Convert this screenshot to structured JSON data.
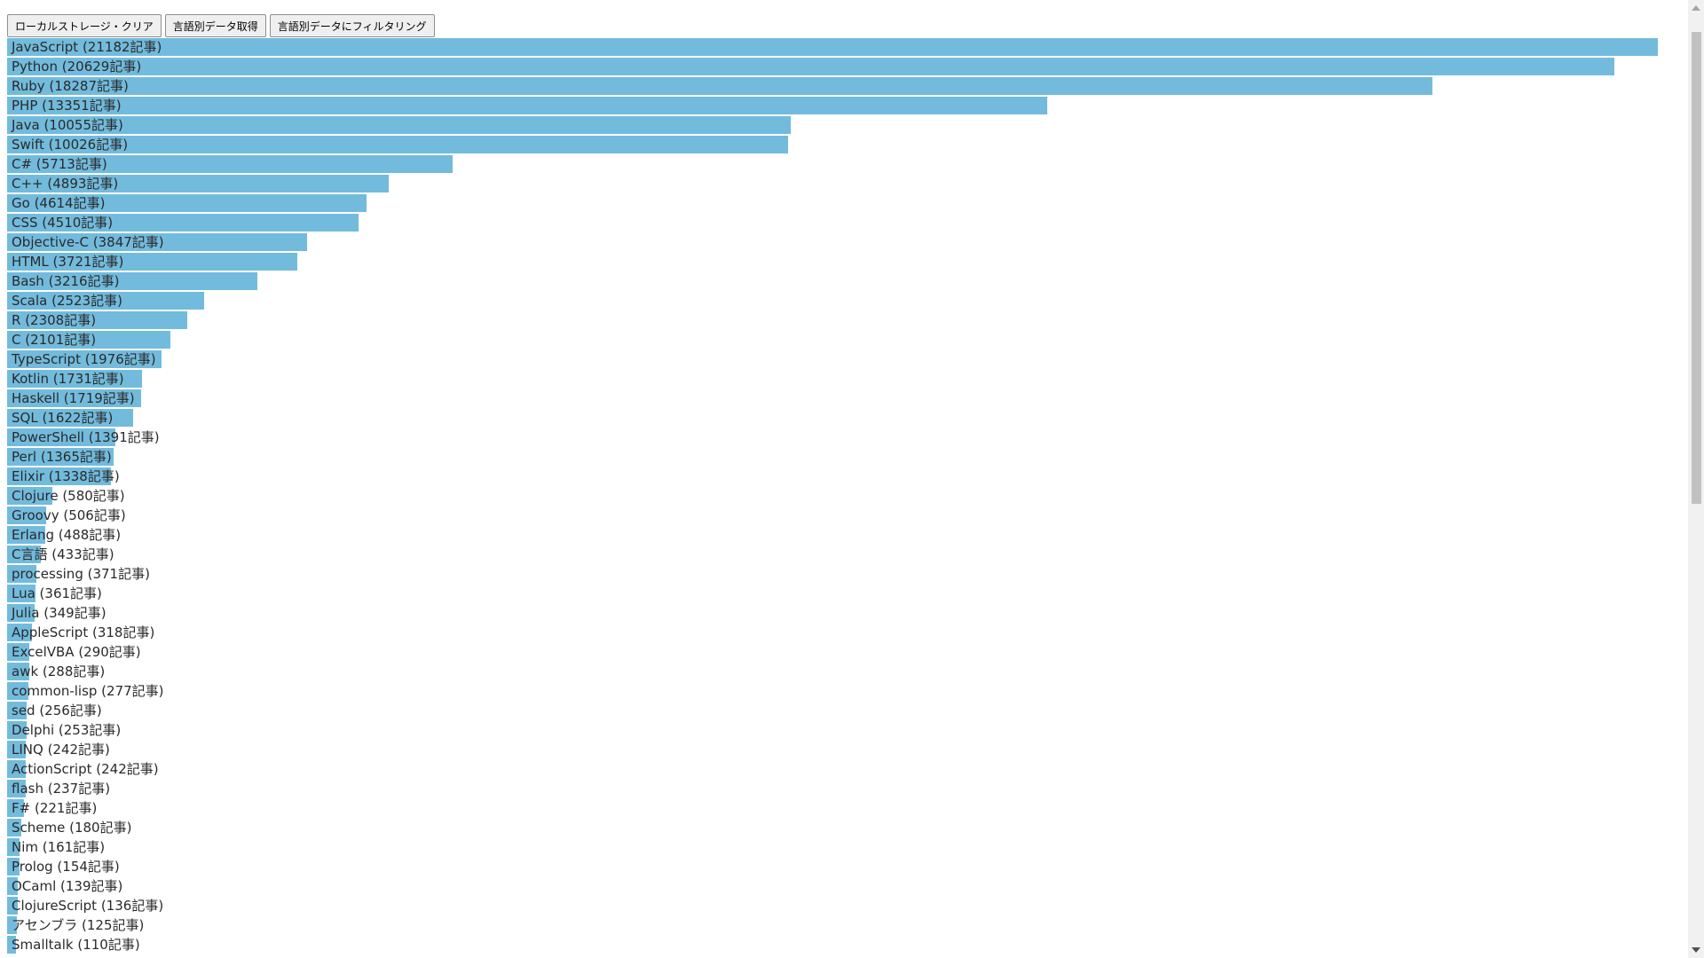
{
  "toolbar": {
    "clear_label": "ローカルストレージ・クリア",
    "fetch_label": "言語別データ取得",
    "filter_label": "言語別データにフィルタリング"
  },
  "chart_data": {
    "type": "bar",
    "orientation": "horizontal",
    "bar_color": "#72bbdd",
    "unit": "記事",
    "max_value": 21182,
    "categories": [
      "JavaScript",
      "Python",
      "Ruby",
      "PHP",
      "Java",
      "Swift",
      "C#",
      "C++",
      "Go",
      "CSS",
      "Objective-C",
      "HTML",
      "Bash",
      "Scala",
      "R",
      "C",
      "TypeScript",
      "Kotlin",
      "Haskell",
      "SQL",
      "PowerShell",
      "Perl",
      "Elixir",
      "Clojure",
      "Groovy",
      "Erlang",
      "C言語",
      "processing",
      "Lua",
      "Julia",
      "AppleScript",
      "ExcelVBA",
      "awk",
      "common-lisp",
      "sed",
      "Delphi",
      "LINQ",
      "ActionScript",
      "flash",
      "F#",
      "Scheme",
      "Nim",
      "Prolog",
      "OCaml",
      "ClojureScript",
      "アセンブラ",
      "Smalltalk"
    ],
    "values": [
      21182,
      20629,
      18287,
      13351,
      10055,
      10026,
      5713,
      4893,
      4614,
      4510,
      3847,
      3721,
      3216,
      2523,
      2308,
      2101,
      1976,
      1731,
      1719,
      1622,
      1391,
      1365,
      1338,
      580,
      506,
      488,
      433,
      371,
      361,
      349,
      318,
      290,
      288,
      277,
      256,
      253,
      242,
      242,
      237,
      221,
      180,
      161,
      154,
      139,
      136,
      125,
      110
    ],
    "labels": [
      "JavaScript (21182記事)",
      "Python (20629記事)",
      "Ruby (18287記事)",
      "PHP (13351記事)",
      "Java (10055記事)",
      "Swift (10026記事)",
      "C# (5713記事)",
      "C++ (4893記事)",
      "Go (4614記事)",
      "CSS (4510記事)",
      "Objective-C (3847記事)",
      "HTML (3721記事)",
      "Bash (3216記事)",
      "Scala (2523記事)",
      "R (2308記事)",
      "C (2101記事)",
      "TypeScript (1976記事)",
      "Kotlin (1731記事)",
      "Haskell (1719記事)",
      "SQL (1622記事)",
      "PowerShell (1391記事)",
      "Perl (1365記事)",
      "Elixir (1338記事)",
      "Clojure (580記事)",
      "Groovy (506記事)",
      "Erlang (488記事)",
      "C言語 (433記事)",
      "processing (371記事)",
      "Lua (361記事)",
      "Julia (349記事)",
      "AppleScript (318記事)",
      "ExcelVBA (290記事)",
      "awk (288記事)",
      "common-lisp (277記事)",
      "sed (256記事)",
      "Delphi (253記事)",
      "LINQ (242記事)",
      "ActionScript (242記事)",
      "flash (237記事)",
      "F# (221記事)",
      "Scheme (180記事)",
      "Nim (161記事)",
      "Prolog (154記事)",
      "OCaml (139記事)",
      "ClojureScript (136記事)",
      "アセンブラ (125記事)",
      "Smalltalk (110記事)"
    ]
  }
}
